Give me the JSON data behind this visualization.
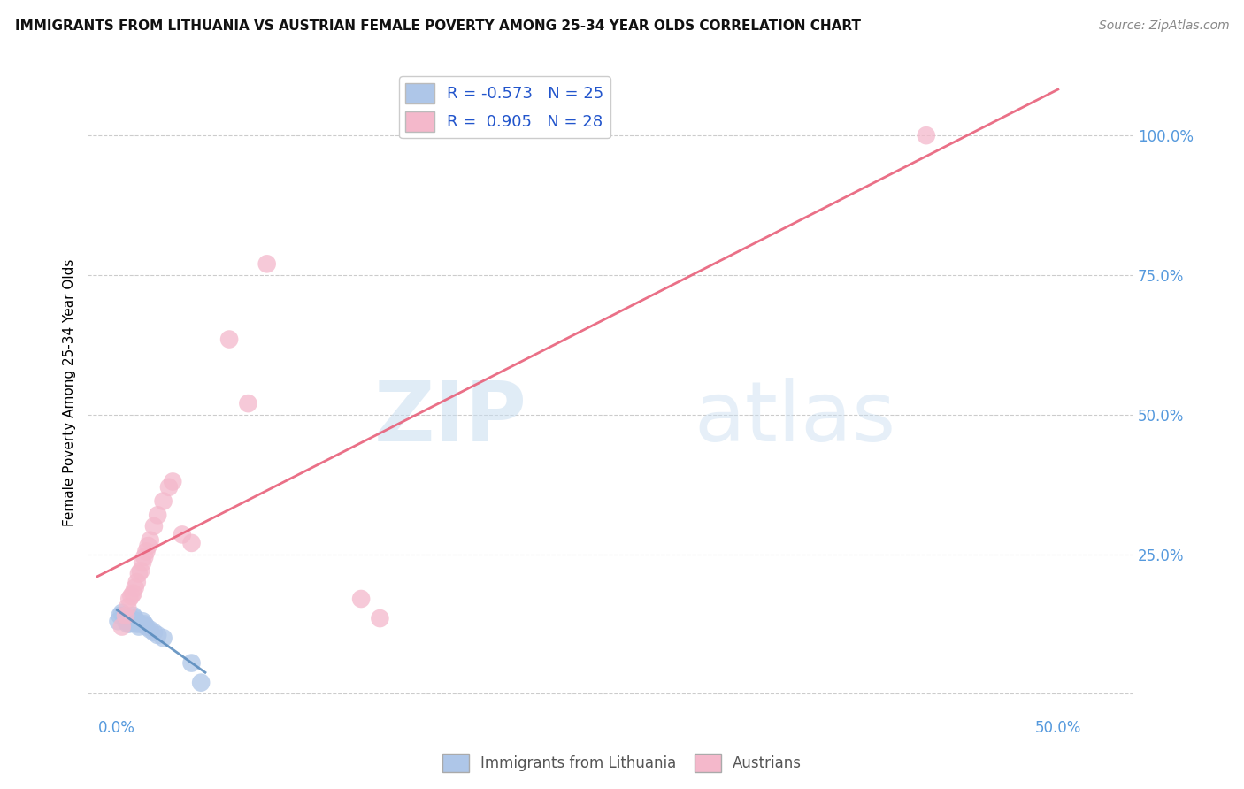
{
  "title": "IMMIGRANTS FROM LITHUANIA VS AUSTRIAN FEMALE POVERTY AMONG 25-34 YEAR OLDS CORRELATION CHART",
  "source": "Source: ZipAtlas.com",
  "ylabel": "Female Poverty Among 25-34 Year Olds",
  "x_ticks": [
    0.0,
    0.1,
    0.2,
    0.3,
    0.4,
    0.5
  ],
  "x_tick_labels": [
    "0.0%",
    "",
    "",
    "",
    "",
    "50.0%"
  ],
  "y_ticks": [
    0.0,
    0.25,
    0.5,
    0.75,
    1.0
  ],
  "y_tick_labels_right": [
    "",
    "25.0%",
    "50.0%",
    "75.0%",
    "100.0%"
  ],
  "xlim": [
    -0.015,
    0.54
  ],
  "ylim": [
    -0.04,
    1.12
  ],
  "blue_R": "-0.573",
  "blue_N": "25",
  "pink_R": "0.905",
  "pink_N": "28",
  "blue_color": "#aec6e8",
  "pink_color": "#f4b8cb",
  "blue_line_color": "#5588bb",
  "pink_line_color": "#e8607a",
  "blue_scatter": [
    [
      0.001,
      0.13
    ],
    [
      0.002,
      0.14
    ],
    [
      0.003,
      0.145
    ],
    [
      0.004,
      0.14
    ],
    [
      0.005,
      0.135
    ],
    [
      0.005,
      0.13
    ],
    [
      0.006,
      0.125
    ],
    [
      0.007,
      0.125
    ],
    [
      0.008,
      0.13
    ],
    [
      0.008,
      0.135
    ],
    [
      0.009,
      0.14
    ],
    [
      0.01,
      0.135
    ],
    [
      0.01,
      0.13
    ],
    [
      0.011,
      0.125
    ],
    [
      0.012,
      0.12
    ],
    [
      0.013,
      0.125
    ],
    [
      0.014,
      0.13
    ],
    [
      0.015,
      0.125
    ],
    [
      0.016,
      0.12
    ],
    [
      0.018,
      0.115
    ],
    [
      0.02,
      0.11
    ],
    [
      0.022,
      0.105
    ],
    [
      0.025,
      0.1
    ],
    [
      0.04,
      0.055
    ],
    [
      0.045,
      0.02
    ]
  ],
  "pink_scatter": [
    [
      0.003,
      0.12
    ],
    [
      0.005,
      0.14
    ],
    [
      0.006,
      0.155
    ],
    [
      0.007,
      0.17
    ],
    [
      0.008,
      0.175
    ],
    [
      0.009,
      0.18
    ],
    [
      0.01,
      0.19
    ],
    [
      0.011,
      0.2
    ],
    [
      0.012,
      0.215
    ],
    [
      0.013,
      0.22
    ],
    [
      0.014,
      0.235
    ],
    [
      0.015,
      0.245
    ],
    [
      0.016,
      0.255
    ],
    [
      0.017,
      0.265
    ],
    [
      0.018,
      0.275
    ],
    [
      0.02,
      0.3
    ],
    [
      0.022,
      0.32
    ],
    [
      0.025,
      0.345
    ],
    [
      0.028,
      0.37
    ],
    [
      0.03,
      0.38
    ],
    [
      0.035,
      0.285
    ],
    [
      0.04,
      0.27
    ],
    [
      0.06,
      0.635
    ],
    [
      0.08,
      0.77
    ],
    [
      0.13,
      0.17
    ],
    [
      0.14,
      0.135
    ],
    [
      0.43,
      1.0
    ],
    [
      0.07,
      0.52
    ]
  ],
  "watermark_zip": "ZIP",
  "watermark_atlas": "atlas",
  "background_color": "#ffffff",
  "grid_color": "#cccccc",
  "grid_style": "--",
  "tick_color": "#5599dd",
  "title_fontsize": 11,
  "source_fontsize": 10,
  "legend_label_color": "#2255cc",
  "bottom_legend_color": "#555555"
}
